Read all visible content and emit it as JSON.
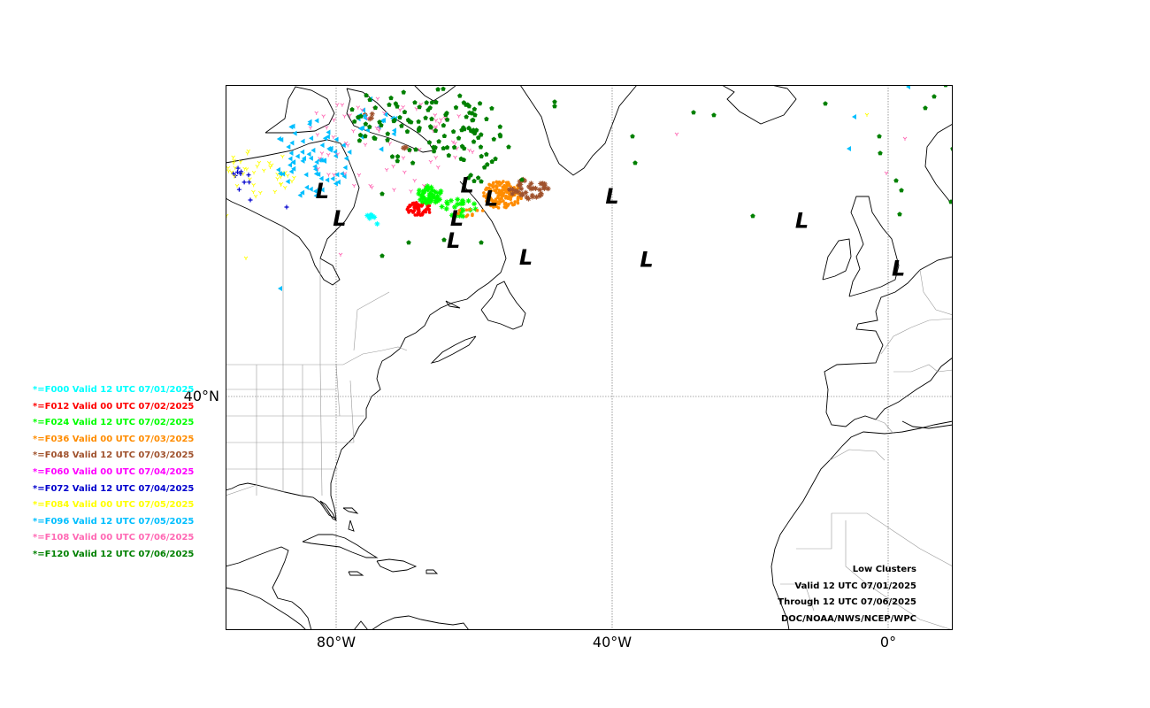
{
  "axes": {
    "lon_ticks": [
      {
        "label": "80°W",
        "lon": -80
      },
      {
        "label": "40°W",
        "lon": -40
      },
      {
        "label": "0°",
        "lon": 0
      }
    ],
    "lat_ticks": [
      {
        "label": "40°N",
        "lat": 40
      }
    ]
  },
  "legend": [
    {
      "text": "*=F000 Valid 12 UTC 07/01/2025",
      "color": "#00ffff"
    },
    {
      "text": "*=F012 Valid 00 UTC 07/02/2025",
      "color": "#ff0000"
    },
    {
      "text": "*=F024 Valid 12 UTC 07/02/2025",
      "color": "#00ff00"
    },
    {
      "text": "*=F036 Valid 00 UTC 07/03/2025",
      "color": "#ff8c00"
    },
    {
      "text": "*=F048 Valid 12 UTC 07/03/2025",
      "color": "#a0522d"
    },
    {
      "text": "*=F060 Valid 00 UTC 07/04/2025",
      "color": "#ff00ff"
    },
    {
      "text": "*=F072 Valid 12 UTC 07/04/2025",
      "color": "#0000cd"
    },
    {
      "text": "*=F084 Valid 00 UTC 07/05/2025",
      "color": "#ffff00"
    },
    {
      "text": "*=F096 Valid 12 UTC 07/05/2025",
      "color": "#00bfff"
    },
    {
      "text": "*=F108 Valid 00 UTC 07/06/2025",
      "color": "#ff69b4"
    },
    {
      "text": "*=F120 Valid 12 UTC 07/06/2025",
      "color": "#008000"
    }
  ],
  "info": [
    "Low Clusters",
    "Valid 12 UTC 07/01/2025",
    "Through 12 UTC 07/06/2025",
    "DOC/NOAA/NWS/NCEP/WPC"
  ],
  "low_marker": "L",
  "low_centers": [
    {
      "lon": -82.0,
      "lat": 58.5
    },
    {
      "lon": -79.5,
      "lat": 56.0
    },
    {
      "lon": -61.0,
      "lat": 59.0
    },
    {
      "lon": -57.5,
      "lat": 57.8
    },
    {
      "lon": -62.5,
      "lat": 56.0
    },
    {
      "lon": -63.0,
      "lat": 54.0
    },
    {
      "lon": -52.5,
      "lat": 52.5
    },
    {
      "lon": -40.0,
      "lat": 58.0
    },
    {
      "lon": -35.0,
      "lat": 52.3
    },
    {
      "lon": -12.5,
      "lat": 55.8
    },
    {
      "lon": 1.5,
      "lat": 51.5
    }
  ]
}
